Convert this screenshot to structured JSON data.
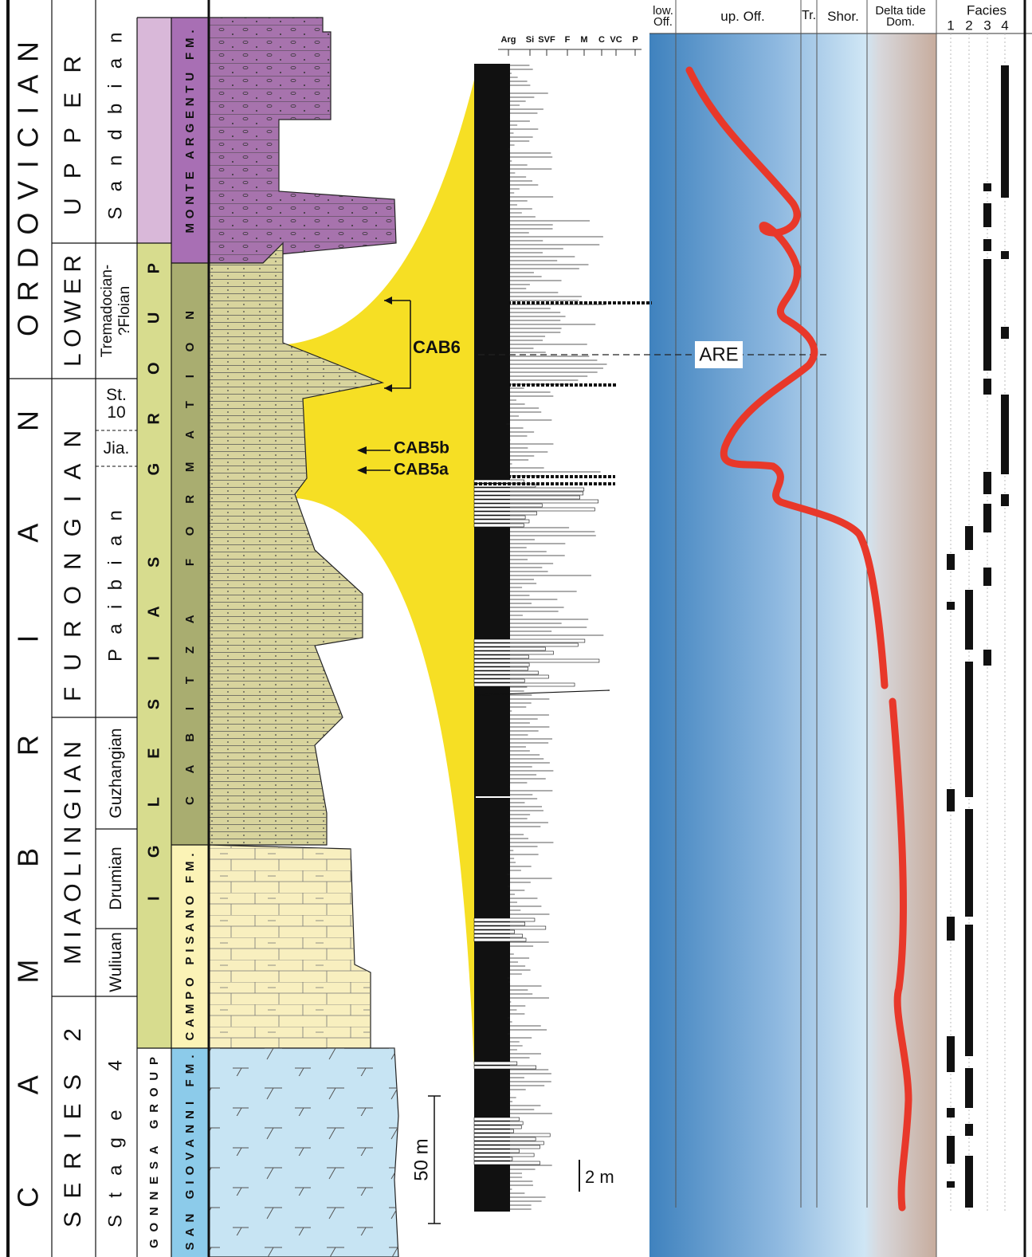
{
  "systems": [
    "ORDOVICIAN",
    "CAMBRIAN"
  ],
  "series": [
    "UPPER",
    "LOWER",
    "FURONGIAN",
    "MIAOLINGIAN",
    "SERIES 2"
  ],
  "stages": [
    {
      "lines": [
        "Sandbian"
      ]
    },
    {
      "lines": [
        "Tremadocian-",
        "?Floian"
      ]
    },
    {
      "lines": [
        "St.",
        "10"
      ]
    },
    {
      "lines": [
        "Jia."
      ]
    },
    {
      "lines": [
        "Paibian"
      ]
    },
    {
      "lines": [
        "Guzhangian"
      ]
    },
    {
      "lines": [
        "Drumian"
      ]
    },
    {
      "lines": [
        "Wuliuan"
      ]
    },
    {
      "lines": [
        "Stage 4"
      ]
    }
  ],
  "groups": [
    "IGLESIAS GROUP",
    "GONNESA GROUP"
  ],
  "formations": [
    "MONTE ARGENTU FM.",
    "CABITZA FORMATION",
    "CAMPO PISANO FM.",
    "SAN GIOVANNI FM."
  ],
  "samples": [
    "CAB6",
    "CAB5b",
    "CAB5a"
  ],
  "scale_bars": [
    "50 m",
    "2 m"
  ],
  "grain_sizes": [
    "Arg",
    "Si",
    "SVF",
    "F",
    "M",
    "C",
    "VC",
    "P"
  ],
  "environments": [
    {
      "lines": [
        "low.",
        "Off."
      ]
    },
    {
      "lines": [
        "up. Off."
      ]
    },
    {
      "lines": [
        "Tr."
      ]
    },
    {
      "lines": [
        "Shor."
      ]
    },
    {
      "lines": [
        "Delta tide",
        "Dom."
      ]
    }
  ],
  "surface_label": "ARE",
  "facies": {
    "title": "Facies",
    "numbers": [
      "1",
      "2",
      "3",
      "4"
    ]
  }
}
